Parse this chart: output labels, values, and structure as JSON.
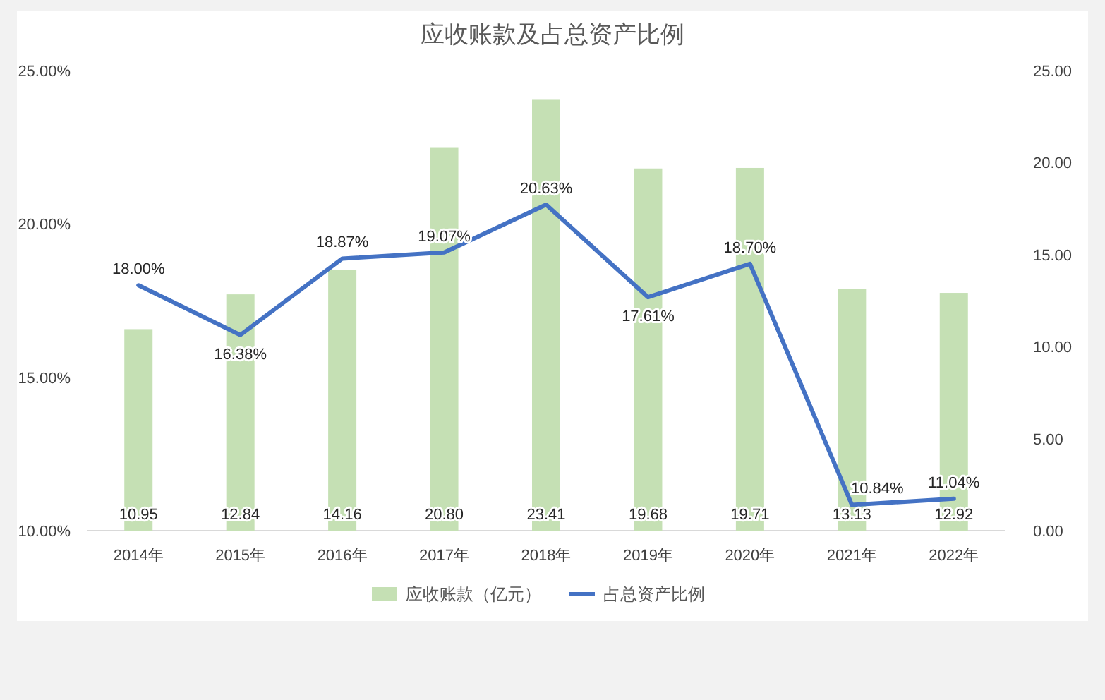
{
  "chart_data": {
    "type": "bar",
    "title": "应收账款及占总资产比例",
    "categories": [
      "2014年",
      "2015年",
      "2016年",
      "2017年",
      "2018年",
      "2019年",
      "2020年",
      "2021年",
      "2022年"
    ],
    "series": [
      {
        "name": "应收账款（亿元）",
        "axis": "y2",
        "color": "#c5e0b4",
        "values": [
          10.95,
          12.84,
          14.16,
          20.8,
          23.41,
          19.68,
          19.71,
          13.13,
          12.92
        ],
        "value_labels": [
          "10.95",
          "12.84",
          "14.16",
          "20.80",
          "23.41",
          "19.68",
          "19.71",
          "13.13",
          "12.92"
        ]
      },
      {
        "name": "占总资产比例",
        "type": "line",
        "color": "#4472c4",
        "values": [
          18.0,
          16.38,
          18.87,
          19.07,
          20.63,
          17.61,
          18.7,
          10.84,
          11.04
        ],
        "value_labels": [
          "18.00%",
          "16.38%",
          "18.87%",
          "19.07%",
          "20.63%",
          "17.61%",
          "18.70%",
          "10.84%",
          "11.04%"
        ]
      }
    ],
    "ylim": [
      10,
      25
    ],
    "yticks": [
      {
        "value": 10,
        "label": "10.00%"
      },
      {
        "value": 15,
        "label": "15.00%"
      },
      {
        "value": 20,
        "label": "20.00%"
      },
      {
        "value": 25,
        "label": "25.00%"
      }
    ],
    "y2lim": [
      0,
      25
    ],
    "y2ticks": [
      {
        "value": 0,
        "label": "0.00"
      },
      {
        "value": 5,
        "label": "5.00"
      },
      {
        "value": 10,
        "label": "10.00"
      },
      {
        "value": 15,
        "label": "15.00"
      },
      {
        "value": 20,
        "label": "20.00"
      },
      {
        "value": 25,
        "label": "25.00"
      }
    ],
    "legend": "bottom",
    "marker": "none",
    "line_style": "solid"
  }
}
